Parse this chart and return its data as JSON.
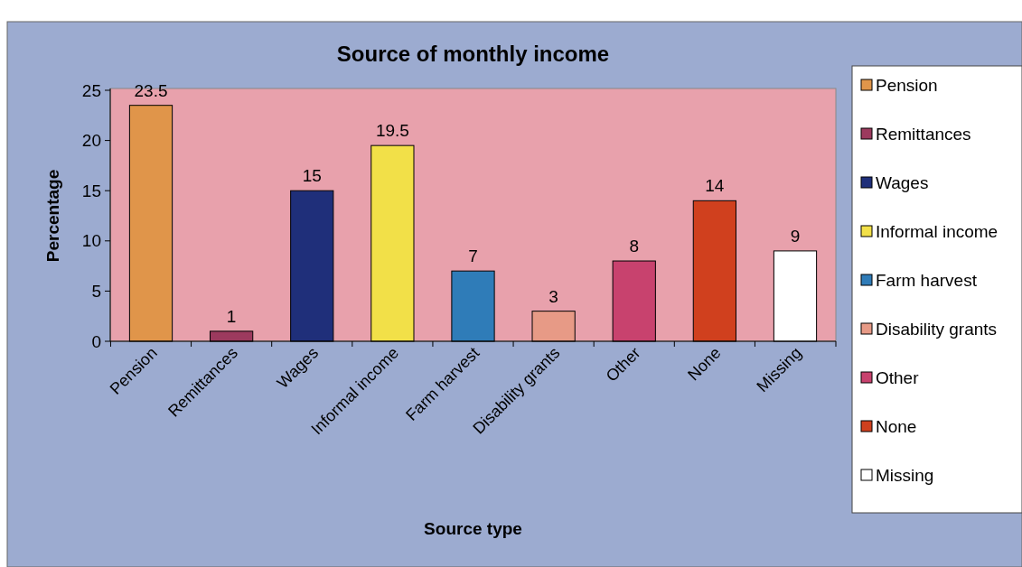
{
  "chart_data": {
    "type": "bar",
    "title": "Source of monthly income",
    "xlabel": "Source type",
    "ylabel": "Percentage",
    "categories": [
      "Pension",
      "Remittances",
      "Wages",
      "Informal income",
      "Farm harvest",
      "Disability grants",
      "Other",
      "None",
      "Missing"
    ],
    "series": [
      {
        "name": "Pension",
        "color": "#e0954a",
        "values": [
          23.5,
          null,
          null,
          null,
          null,
          null,
          null,
          null,
          null
        ]
      },
      {
        "name": "Remittances",
        "color": "#9c3a5e",
        "values": [
          null,
          1,
          null,
          null,
          null,
          null,
          null,
          null,
          null
        ]
      },
      {
        "name": "Wages",
        "color": "#1f2f7a",
        "values": [
          null,
          null,
          15,
          null,
          null,
          null,
          null,
          null,
          null
        ]
      },
      {
        "name": "Informal income",
        "color": "#f2e048",
        "values": [
          null,
          null,
          null,
          19.5,
          null,
          null,
          null,
          null,
          null
        ]
      },
      {
        "name": "Farm harvest",
        "color": "#2f7cb8",
        "values": [
          null,
          null,
          null,
          null,
          7,
          null,
          null,
          null,
          null
        ]
      },
      {
        "name": "Disability grants",
        "color": "#e79a86",
        "values": [
          null,
          null,
          null,
          null,
          null,
          3,
          null,
          null,
          null
        ]
      },
      {
        "name": "Other",
        "color": "#c8426e",
        "values": [
          null,
          null,
          null,
          null,
          null,
          null,
          8,
          null,
          null
        ]
      },
      {
        "name": "None",
        "color": "#d0401e",
        "values": [
          null,
          null,
          null,
          null,
          null,
          null,
          null,
          14,
          null
        ]
      },
      {
        "name": "Missing",
        "color": "#ffffff",
        "values": [
          null,
          null,
          null,
          null,
          null,
          null,
          null,
          null,
          9
        ]
      }
    ],
    "ylim": [
      0,
      25
    ],
    "yticks": [
      0,
      5,
      10,
      15,
      20,
      25
    ],
    "data_labels": true,
    "legend": "right",
    "grid": false
  }
}
